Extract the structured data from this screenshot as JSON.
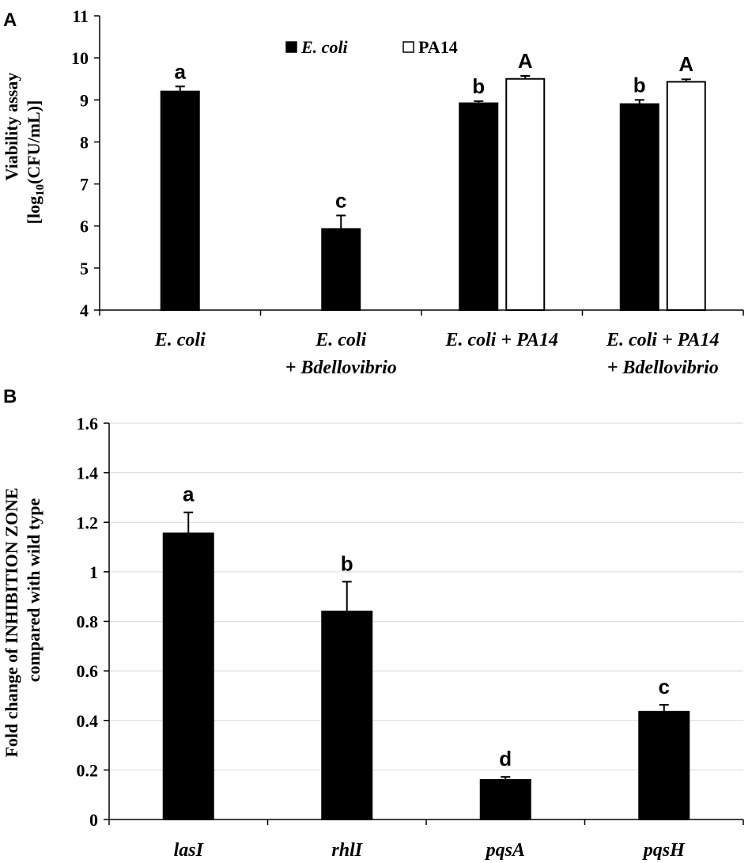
{
  "chart_data": [
    {
      "panel_label": "A",
      "type": "bar",
      "ylabel_line1": "Viability assay",
      "ylabel_line2_prefix": "[log",
      "ylabel_line2_sub": "10",
      "ylabel_line2_suffix": "(CFU/mL)]",
      "ylim": [
        4,
        11
      ],
      "yticks": [
        4,
        5,
        6,
        7,
        8,
        9,
        10,
        11
      ],
      "grid": false,
      "legend_position": "top-center",
      "categories": [
        [
          "E. coli"
        ],
        [
          "E. coli",
          "+ Bdellovibrio"
        ],
        [
          "E. coli + PA14"
        ],
        [
          "E. coli + PA14",
          "+ Bdellovibrio"
        ]
      ],
      "series": [
        {
          "name": "E. coli",
          "color": "#000000",
          "values": [
            9.2,
            5.93,
            8.92,
            8.9
          ],
          "errors": [
            0.12,
            0.32,
            0.05,
            0.1
          ],
          "labels": [
            "a",
            "c",
            "b",
            "b"
          ]
        },
        {
          "name": "PA14",
          "color": "#ffffff",
          "values": [
            null,
            null,
            9.5,
            9.43
          ],
          "errors": [
            null,
            null,
            0.07,
            0.06
          ],
          "labels": [
            null,
            null,
            "A",
            "A"
          ]
        }
      ]
    },
    {
      "panel_label": "B",
      "type": "bar",
      "ylabel_line1": "Fold change of INHIBITION ZONE",
      "ylabel_line2": "compared with wild type",
      "ylim": [
        0,
        1.6
      ],
      "yticks": [
        0,
        0.2,
        0.4,
        0.6,
        0.8,
        1,
        1.2,
        1.4,
        1.6
      ],
      "grid": true,
      "categories": [
        "lasI",
        "rhlI",
        "pqsA",
        "pqsH"
      ],
      "series": [
        {
          "name": "Fold change",
          "color": "#000000",
          "values": [
            1.155,
            0.84,
            0.16,
            0.435
          ],
          "errors": [
            0.085,
            0.12,
            0.012,
            0.028
          ],
          "labels": [
            "a",
            "b",
            "d",
            "c"
          ]
        }
      ]
    }
  ]
}
